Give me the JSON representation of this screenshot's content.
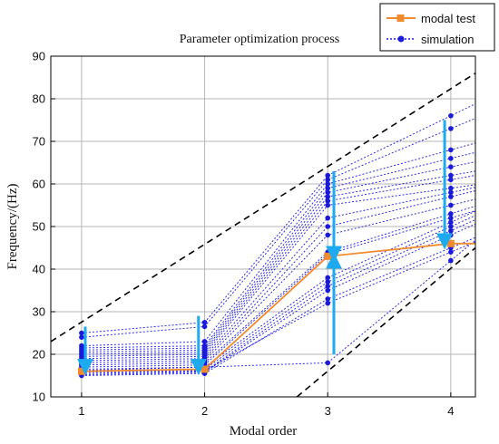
{
  "chart_data": {
    "type": "line",
    "title": "Parameter optimization process",
    "xlabel": "Modal order",
    "ylabel": "Frequency/(Hz)",
    "x": [
      1,
      2,
      3,
      4
    ],
    "xlim": [
      0.75,
      4.2
    ],
    "ylim": [
      10,
      90
    ],
    "xticks": [
      "1",
      "2",
      "3",
      "4"
    ],
    "yticks": [
      "10",
      "20",
      "30",
      "40",
      "50",
      "60",
      "70",
      "80",
      "90"
    ],
    "grid": true,
    "legend_position": "top-right",
    "colors": {
      "modal_test": "#f28a2e",
      "simulation": "#1a1adb",
      "arrows": "#1eaaf1",
      "bounds": "#000000"
    },
    "series": [
      {
        "name": "modal test",
        "style": "solid line with square markers",
        "values": [
          16,
          16.5,
          43,
          46
        ]
      },
      {
        "name": "simulation",
        "style": "dotted lines with circle markers",
        "runs": [
          [
            25,
            27.5,
            62,
            76
          ],
          [
            24,
            26.5,
            61,
            73
          ],
          [
            22,
            23,
            60,
            68
          ],
          [
            21.5,
            22,
            59,
            66
          ],
          [
            21,
            21.5,
            58,
            64
          ],
          [
            20.5,
            21,
            57,
            62
          ],
          [
            20,
            20.5,
            56,
            61
          ],
          [
            19.5,
            20,
            55,
            59
          ],
          [
            19,
            19.5,
            52,
            58
          ],
          [
            18.5,
            19,
            50,
            57
          ],
          [
            18,
            18.5,
            48,
            55
          ],
          [
            17.5,
            18,
            44,
            53
          ],
          [
            17,
            17.5,
            43.5,
            52
          ],
          [
            16.5,
            17,
            38,
            51
          ],
          [
            16,
            16.5,
            37,
            50
          ],
          [
            15.5,
            16,
            36,
            49
          ],
          [
            15.2,
            15.8,
            35,
            48
          ],
          [
            15,
            15.5,
            33,
            45
          ],
          [
            15.8,
            16.2,
            32,
            44
          ],
          [
            16.2,
            17,
            18,
            42
          ]
        ]
      }
    ],
    "reference_lines": [
      {
        "name": "upper bound",
        "style": "dashed",
        "points": [
          [
            0.75,
            23
          ],
          [
            4.2,
            86
          ]
        ]
      },
      {
        "name": "lower bound",
        "style": "dashed",
        "points": [
          [
            2.75,
            10
          ],
          [
            4.2,
            45
          ]
        ]
      }
    ],
    "arrows": [
      {
        "x": 1.03,
        "from": 26.5,
        "to": 17
      },
      {
        "x": 1.95,
        "from": 29,
        "to": 17
      },
      {
        "x": 3.05,
        "from": 63,
        "to": 43.5
      },
      {
        "x": 3.05,
        "from": 20,
        "to": 42
      },
      {
        "x": 3.95,
        "from": 75,
        "to": 46.5
      }
    ]
  }
}
